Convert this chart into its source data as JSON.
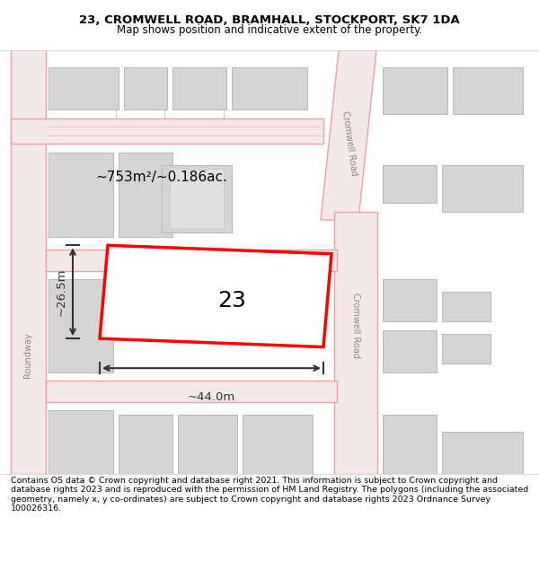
{
  "title_line1": "23, CROMWELL ROAD, BRAMHALL, STOCKPORT, SK7 1DA",
  "title_line2": "Map shows position and indicative extent of the property.",
  "footer_text": "Contains OS data © Crown copyright and database right 2021. This information is subject to Crown copyright and database rights 2023 and is reproduced with the permission of HM Land Registry. The polygons (including the associated geometry, namely x, y co-ordinates) are subject to Crown copyright and database rights 2023 Ordnance Survey 100026316.",
  "bg_color": "#f5f5f5",
  "map_bg": "#ffffff",
  "road_stroke": "#f0a0a0",
  "road_fill": "#f8d0d0",
  "building_fill": "#d8d8d8",
  "building_stroke": "#c0c0c0",
  "highlight_stroke": "#ff0000",
  "highlight_fill": "#ffffff",
  "dim_color": "#333333",
  "text_label": "23",
  "area_text": "~753m²/~0.186ac.",
  "dim_width": "~44.0m",
  "dim_height": "~26.5m",
  "road_label_1": "Cromwell Road",
  "road_label_2": "Cromwell Road",
  "road_label_left": "Roundway"
}
